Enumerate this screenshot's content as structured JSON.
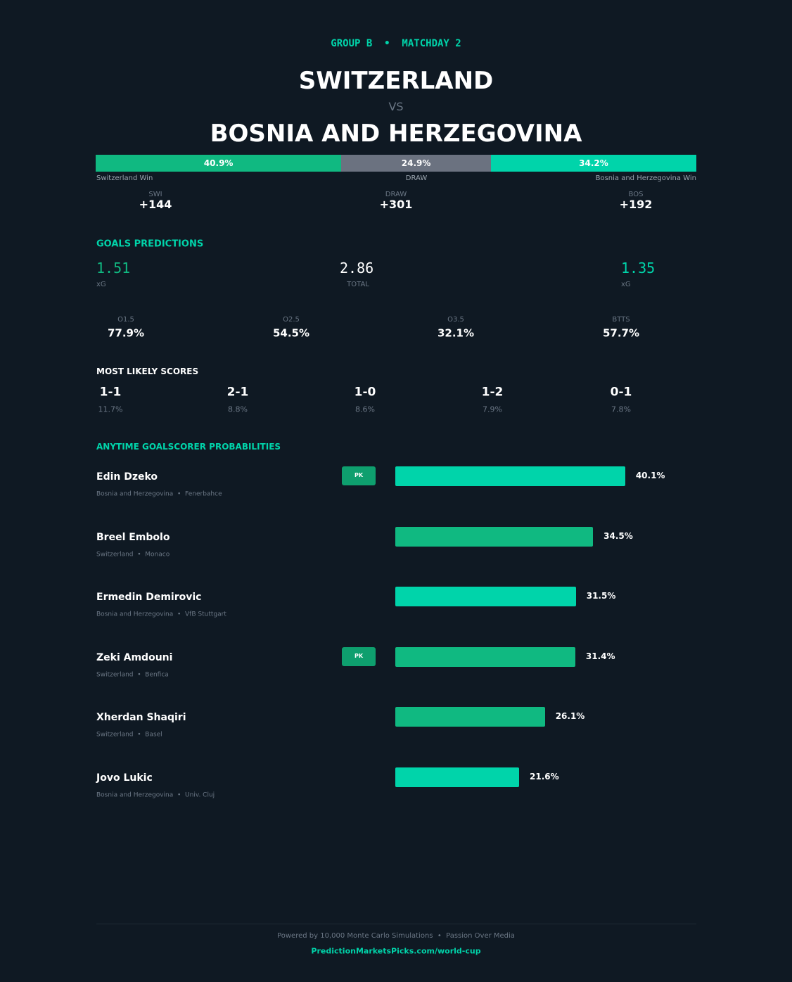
{
  "header": {
    "kicker": "GROUP B  •  MATCHDAY 2",
    "home": "SWITZERLAND",
    "vs": "VS",
    "away": "BOSNIA AND HERZEGOVINA"
  },
  "outcomes": [
    {
      "value": 40.9,
      "label": "40.9%",
      "name": "Switzerland Win",
      "color": "#10b981",
      "odds_label": "SWI",
      "odds": "+144"
    },
    {
      "value": 24.9,
      "label": "24.9%",
      "name": "DRAW",
      "color": "#6b7280",
      "odds_label": "DRAW",
      "odds": "+301"
    },
    {
      "value": 34.2,
      "label": "34.2%",
      "name": "Bosnia and Herzegovina Win",
      "color": "#00d4aa",
      "odds_label": "BOS",
      "odds": "+192"
    }
  ],
  "goals": {
    "title": "GOALS PREDICTIONS",
    "home_xg": "1.51",
    "home_xg_label": "xG",
    "total": "2.86",
    "total_label": "TOTAL",
    "away_xg": "1.35",
    "away_xg_label": "xG",
    "markets": [
      {
        "label": "O1.5",
        "value": "77.9%"
      },
      {
        "label": "O2.5",
        "value": "54.5%"
      },
      {
        "label": "O3.5",
        "value": "32.1%"
      },
      {
        "label": "BTTS",
        "value": "57.7%"
      }
    ]
  },
  "scores": {
    "title": "MOST LIKELY SCORES",
    "items": [
      {
        "score": "1-1",
        "pct": "11.7%"
      },
      {
        "score": "2-1",
        "pct": "8.8%"
      },
      {
        "score": "1-0",
        "pct": "8.6%"
      },
      {
        "score": "1-2",
        "pct": "7.9%"
      },
      {
        "score": "0-1",
        "pct": "7.8%"
      }
    ]
  },
  "scorers": {
    "title": "ANYTIME GOALSCORER PROBABILITIES",
    "players": [
      {
        "name": "Edin Dzeko",
        "meta": "Bosnia and Herzegovina  •  Fenerbahce",
        "badge": "PK",
        "value": 40.1,
        "label": "40.1%",
        "color": "#00d4aa"
      },
      {
        "name": "Breel Embolo",
        "meta": "Switzerland  •  Monaco",
        "value": 34.5,
        "label": "34.5%",
        "color": "#10b981"
      },
      {
        "name": "Ermedin Demirovic",
        "meta": "Bosnia and Herzegovina  •  VfB Stuttgart",
        "value": 31.5,
        "label": "31.5%",
        "color": "#00d4aa"
      },
      {
        "name": "Zeki Amdouni",
        "meta": "Switzerland  •  Benfica",
        "badge": "PK",
        "value": 31.4,
        "label": "31.4%",
        "color": "#10b981"
      },
      {
        "name": "Xherdan Shaqiri",
        "meta": "Switzerland  •  Basel",
        "value": 26.1,
        "label": "26.1%",
        "color": "#10b981"
      },
      {
        "name": "Jovo Lukic",
        "meta": "Bosnia and Herzegovina  •  Univ. Cluj",
        "value": 21.6,
        "label": "21.6%",
        "color": "#00d4aa"
      }
    ]
  },
  "footer": {
    "note": "Powered by 10,000 Monte Carlo Simulations  •  Passion Over Media",
    "link": "PredictionMarketsPicks.com/world-cup"
  }
}
